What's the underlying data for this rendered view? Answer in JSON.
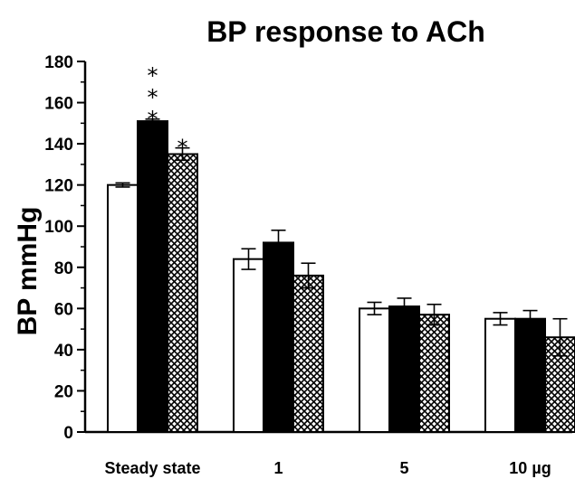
{
  "chart_data": {
    "type": "bar",
    "title": "BP response to ACh",
    "ylabel": "BP mmHg",
    "xlabel": "",
    "ylim": [
      0,
      180
    ],
    "yticks": [
      0,
      20,
      40,
      60,
      80,
      100,
      120,
      140,
      160,
      180
    ],
    "categories": [
      "Steady state",
      "1",
      "5",
      "10 µg"
    ],
    "series": [
      {
        "fill": "white",
        "values": [
          120,
          84,
          60,
          55
        ],
        "errors": [
          1,
          5,
          3,
          3
        ]
      },
      {
        "fill": "black",
        "values": [
          151,
          92,
          61,
          55
        ],
        "errors": [
          1,
          6,
          4,
          4
        ]
      },
      {
        "fill": "hatch",
        "values": [
          135,
          76,
          57,
          46
        ],
        "errors": [
          3,
          6,
          5,
          9
        ]
      }
    ],
    "annotations": [
      {
        "category": 0,
        "series": 1,
        "text": "*\n*\n*"
      },
      {
        "category": 0,
        "series": 2,
        "text": "*"
      }
    ],
    "grid": false,
    "legend": "none",
    "colors": {
      "bar_outline": "#000000",
      "bar_white": "#ffffff",
      "bar_black": "#000000",
      "hatch": "#000000"
    }
  }
}
